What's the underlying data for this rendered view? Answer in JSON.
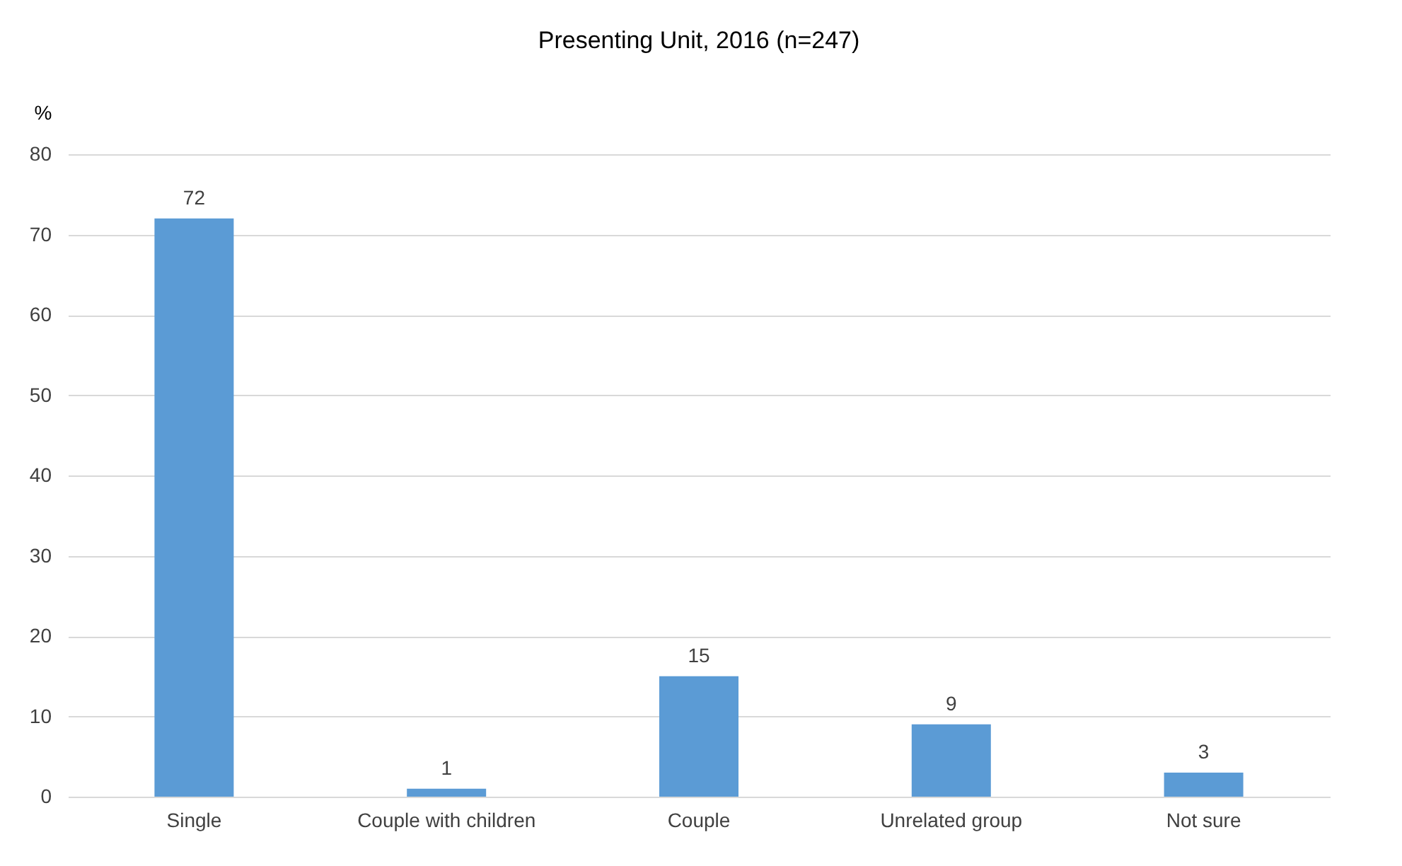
{
  "chart_data": {
    "type": "bar",
    "title": "Presenting Unit, 2016 (n=247)",
    "ylabel": "%",
    "categories": [
      "Single",
      "Couple with children",
      "Couple",
      "Unrelated group",
      "Not sure"
    ],
    "values": [
      72,
      1,
      15,
      9,
      3
    ],
    "color": "#5b9bd5",
    "ylim": [
      0,
      80
    ],
    "yticks": [
      0,
      10,
      20,
      30,
      40,
      50,
      60,
      70,
      80
    ],
    "grid": "y",
    "data_labels": true
  }
}
